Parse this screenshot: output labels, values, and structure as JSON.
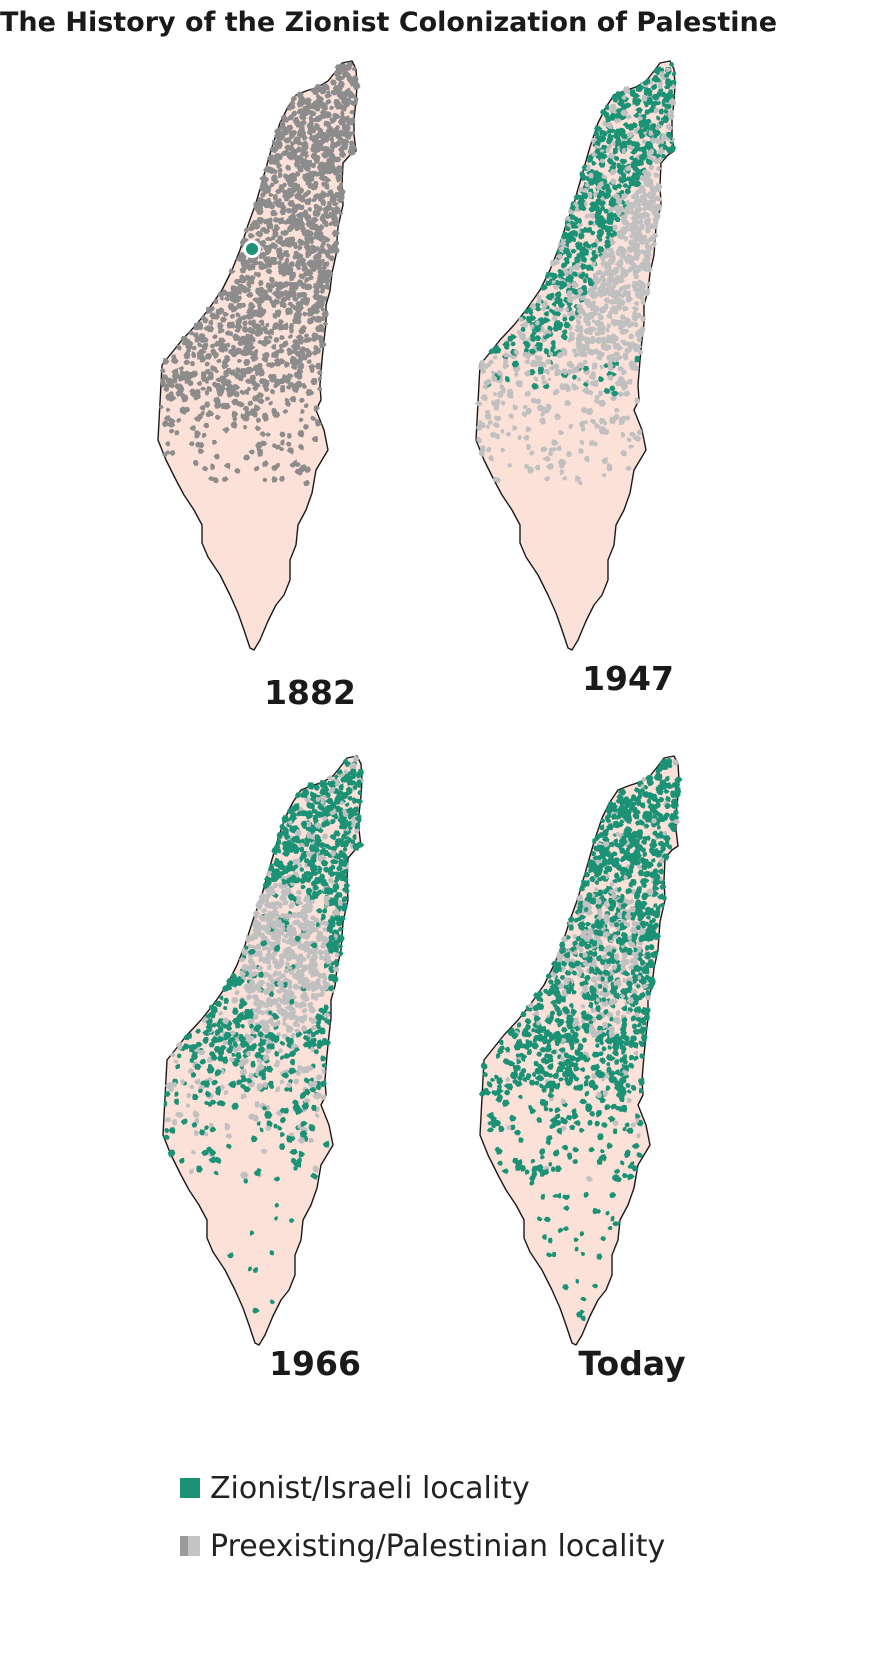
{
  "title": "The History of the Zionist Colonization of Palestine",
  "colors": {
    "land": "#fce1d9",
    "outline": "#1a1a1a",
    "zionist": "#1b9275",
    "palestinian_dark": "#8c8c8c",
    "palestinian_light": "#c0c0c0",
    "marker_ring": "#ffffff"
  },
  "maps": [
    {
      "year": "1882"
    },
    {
      "year": "1947"
    },
    {
      "year": "1966"
    },
    {
      "year": "Today"
    }
  ],
  "legend": {
    "items": [
      {
        "label": "Zionist/Israeli locality",
        "icon": "green-square"
      },
      {
        "label": "Preexisting/Palestinian locality",
        "icon": "gray-square"
      }
    ]
  }
}
